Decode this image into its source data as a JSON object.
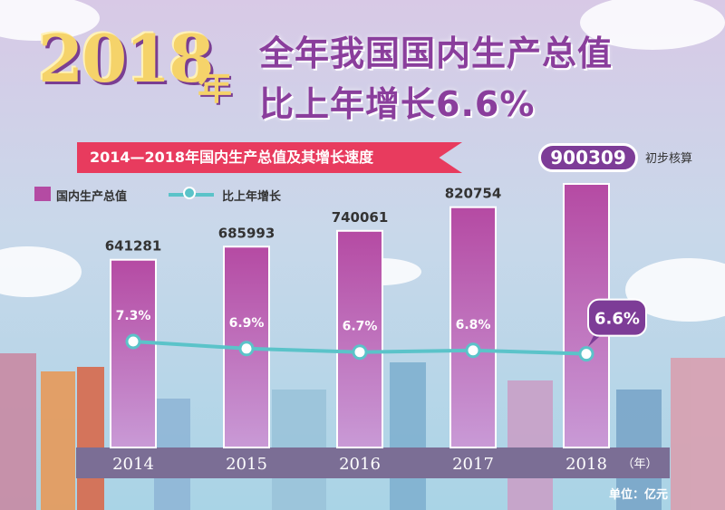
{
  "header": {
    "year_big": "2018",
    "year_suffix": "年",
    "line1": "全年我国国内生产总值",
    "line2": "比上年增长6.6%"
  },
  "subtitle": "2014—2018年国内生产总值及其增长速度",
  "highlight_value": "900309",
  "highlight_note": "初步核算",
  "legend": {
    "bar_label": "国内生产总值",
    "line_label": "比上年增长"
  },
  "unit_label": "单位：亿元",
  "x_unit": "（年）",
  "colors": {
    "bar_top": "#b54aa3",
    "bar_bottom": "#c99ad6",
    "line": "#5bc3c9",
    "banner": "#e83b5e",
    "pill": "#7d3c97",
    "axis_band": "#7b6e95"
  },
  "chart_data": {
    "type": "bar",
    "title": "2014—2018年国内生产总值及其增长速度",
    "categories": [
      "2014",
      "2015",
      "2016",
      "2017",
      "2018"
    ],
    "series": [
      {
        "name": "国内生产总值",
        "type": "bar",
        "values": [
          641281,
          685993,
          740061,
          820754,
          900309
        ],
        "labels": [
          "641281",
          "685993",
          "740061",
          "820754",
          "900309"
        ]
      },
      {
        "name": "比上年增长",
        "type": "line",
        "values": [
          7.3,
          6.9,
          6.7,
          6.8,
          6.6
        ],
        "labels": [
          "7.3%",
          "6.9%",
          "6.7%",
          "6.8%",
          "6.6%"
        ]
      }
    ],
    "legend": "top-left",
    "grid": false
  }
}
